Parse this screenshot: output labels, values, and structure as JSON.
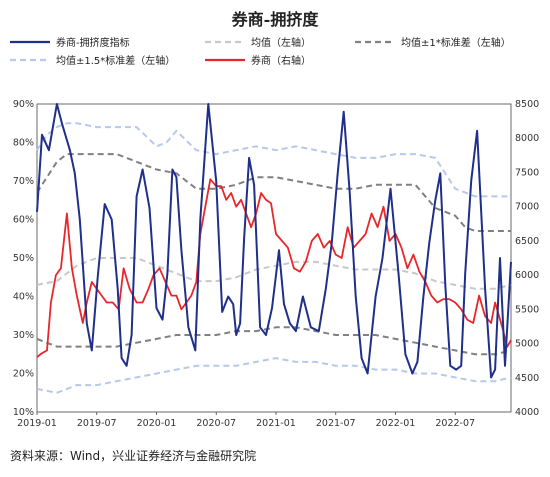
{
  "title": "券商-拥挤度",
  "source": "资料来源：Wind，兴业证券经济与金融研究院",
  "chart_data": {
    "type": "line",
    "x_ticks": [
      "2019-01",
      "2019-07",
      "2020-01",
      "2020-07",
      "2021-01",
      "2021-07",
      "2022-01",
      "2022-07"
    ],
    "x_range": [
      "2019-01",
      "2022-12"
    ],
    "y_left": {
      "ticks": [
        "10%",
        "20%",
        "30%",
        "40%",
        "50%",
        "60%",
        "70%",
        "80%",
        "90%"
      ],
      "min": 10,
      "max": 90
    },
    "y_right": {
      "ticks": [
        "4000",
        "4500",
        "5000",
        "5500",
        "6000",
        "6500",
        "7000",
        "7500",
        "8000",
        "8500"
      ],
      "min": 4000,
      "max": 8500
    },
    "legend": [
      "券商-拥挤度指标",
      "均值（左轴）",
      "均值±1*标准差（左轴）",
      "均值±1.5*标准差（左轴）",
      "券商（右轴）"
    ],
    "colors": {
      "crowding": "#1f2f8a",
      "mean": "#c8c8c8",
      "band1": "#808080",
      "band15": "#b7c8ea",
      "broker": "#e8262b"
    },
    "series": [
      {
        "name": "券商-拥挤度指标",
        "axis": "left",
        "t": [
          0,
          0.5,
          1.2,
          2,
          2.5,
          3.3,
          3.8,
          4.3,
          5,
          5.5,
          6.1,
          6.8,
          7.5,
          8.1,
          8.5,
          9,
          9.5,
          10,
          10.6,
          11.3,
          12,
          12.6,
          13.1,
          13.6,
          14,
          14.5,
          15.2,
          15.9,
          16.4,
          17.2,
          18,
          18.6,
          19.2,
          19.7,
          20,
          20.4,
          20.8,
          21.3,
          21.8,
          22.4,
          23,
          23.6,
          24.3,
          24.8,
          25.4,
          26,
          26.7,
          27.5,
          28.3,
          29,
          29.6,
          30.2,
          30.8,
          31.4,
          32,
          32.6,
          33.2,
          34,
          34.7,
          35.5,
          36.3,
          37,
          37.7,
          38.2,
          38.8,
          39.4,
          40,
          40.5,
          41,
          41.5,
          42.1,
          42.6,
          43,
          43.6,
          44.2,
          45,
          45.6,
          46,
          46.5,
          47,
          47.6
        ],
        "v": [
          62,
          82,
          78,
          90,
          85,
          78,
          72,
          60,
          33,
          26,
          45,
          64,
          60,
          42,
          24,
          22,
          30,
          66,
          73,
          63,
          37,
          34,
          46,
          73,
          71,
          52,
          32,
          26,
          60,
          90,
          70,
          36,
          40,
          38,
          30,
          33,
          55,
          76,
          69,
          32,
          30,
          37,
          52,
          38,
          33,
          31,
          40,
          32,
          31,
          42,
          54,
          72,
          88,
          67,
          40,
          24,
          20,
          40,
          50,
          68,
          46,
          25,
          20,
          23,
          40,
          54,
          65,
          72,
          43,
          22,
          21,
          22,
          46,
          70,
          83,
          42,
          19,
          21,
          50,
          22,
          49
        ]
      },
      {
        "name": "券商（右轴）",
        "axis": "right",
        "t": [
          0,
          0.4,
          1,
          1.4,
          1.9,
          2.4,
          3,
          3.5,
          4,
          4.6,
          5,
          5.5,
          6,
          6.5,
          7,
          7.6,
          8.2,
          8.7,
          9.3,
          10,
          10.6,
          11.2,
          11.7,
          12.3,
          12.9,
          13.5,
          14,
          14.5,
          15,
          15.5,
          16,
          16.4,
          16.9,
          17.4,
          18,
          18.5,
          19,
          19.5,
          20,
          20.5,
          21,
          21.5,
          22,
          22.5,
          23,
          23.5,
          24,
          24.6,
          25.2,
          25.8,
          26.4,
          27,
          27.6,
          28.2,
          28.8,
          29.4,
          30,
          30.6,
          31.2,
          31.8,
          32.4,
          33,
          33.6,
          34.2,
          34.8,
          35.4,
          36,
          36.6,
          37.2,
          37.8,
          38.4,
          39,
          39.6,
          40.2,
          40.8,
          41.4,
          42,
          42.6,
          43.2,
          43.8,
          44.4,
          45,
          45.6,
          46,
          46.4,
          46.8,
          47.2,
          47.6
        ],
        "v": [
          4800,
          4850,
          4900,
          5600,
          6000,
          6100,
          6900,
          6100,
          5700,
          5300,
          5600,
          5900,
          5800,
          5700,
          5600,
          5600,
          5500,
          6100,
          5800,
          5600,
          5600,
          5800,
          6000,
          6100,
          5900,
          5700,
          5700,
          5500,
          5600,
          5700,
          5900,
          6600,
          7000,
          7400,
          7300,
          7300,
          7100,
          7200,
          7000,
          7100,
          6900,
          6700,
          6900,
          7200,
          7100,
          7050,
          6600,
          6500,
          6400,
          6100,
          6050,
          6200,
          6500,
          6600,
          6400,
          6500,
          6300,
          6250,
          6700,
          6400,
          6500,
          6600,
          6900,
          6700,
          7000,
          6500,
          6600,
          6400,
          6100,
          6300,
          6050,
          5900,
          5700,
          5600,
          5650,
          5650,
          5600,
          5500,
          5350,
          5300,
          5700,
          5400,
          5300,
          5600,
          5400,
          5200,
          4950,
          5050
        ]
      },
      {
        "name": "均值（左轴）",
        "axis": "left",
        "t": [
          0,
          2,
          4,
          6,
          8,
          10,
          12,
          14,
          16,
          18,
          20,
          22,
          24,
          26,
          28,
          30,
          32,
          34,
          36,
          38,
          40,
          42,
          44,
          46,
          47.6
        ],
        "v": [
          43,
          44,
          48,
          50,
          50,
          50,
          48,
          46,
          44,
          44,
          45,
          47,
          48,
          49,
          49,
          48,
          47,
          47,
          47,
          46,
          44,
          43,
          42,
          42,
          43
        ]
      },
      {
        "name": "均值+1*标准差（左轴）",
        "axis": "left",
        "t": [
          0,
          1,
          2,
          3,
          4,
          6,
          8,
          10,
          12,
          14,
          16,
          18,
          20,
          22,
          24,
          26,
          28,
          30,
          32,
          34,
          36,
          38,
          40,
          42,
          43,
          44,
          46,
          47.6
        ],
        "v": [
          67,
          71,
          75,
          77,
          77,
          77,
          77,
          75,
          73,
          72,
          68,
          68,
          69,
          71,
          71,
          70,
          69,
          68,
          68,
          69,
          69,
          69,
          63,
          61,
          58,
          57,
          57,
          57
        ]
      },
      {
        "name": "均值-1*标准差（左轴）",
        "axis": "left",
        "t": [
          0,
          2,
          4,
          6,
          8,
          10,
          12,
          14,
          16,
          18,
          20,
          22,
          24,
          26,
          28,
          30,
          32,
          34,
          36,
          38,
          40,
          42,
          44,
          46,
          47.6
        ],
        "v": [
          29,
          27,
          27,
          27,
          27,
          28,
          29,
          30,
          30,
          30,
          31,
          31,
          32,
          32,
          31,
          30,
          30,
          30,
          29,
          28,
          27,
          26,
          25,
          25,
          26
        ]
      },
      {
        "name": "均值+1.5*标准差（左轴）",
        "axis": "left",
        "t": [
          0,
          1,
          2,
          3,
          4,
          6,
          8,
          10,
          12,
          13,
          14,
          16,
          18,
          20,
          22,
          24,
          26,
          28,
          30,
          32,
          34,
          36,
          38,
          40,
          41,
          42,
          44,
          46,
          47.6
        ],
        "v": [
          78,
          82,
          84,
          85,
          85,
          84,
          84,
          84,
          79,
          80,
          83,
          78,
          77,
          78,
          79,
          78,
          79,
          78,
          77,
          76,
          76,
          77,
          77,
          76,
          72,
          68,
          66,
          66,
          66
        ]
      },
      {
        "name": "均值-1.5*标准差（左轴）",
        "axis": "left",
        "t": [
          0,
          2,
          4,
          6,
          8,
          10,
          12,
          14,
          16,
          18,
          20,
          22,
          24,
          26,
          28,
          30,
          32,
          34,
          36,
          38,
          40,
          42,
          44,
          46,
          47.6
        ],
        "v": [
          16,
          15,
          17,
          17,
          18,
          19,
          20,
          21,
          22,
          22,
          22,
          23,
          24,
          23,
          23,
          22,
          22,
          21,
          21,
          20,
          20,
          19,
          18,
          18,
          19
        ]
      }
    ]
  }
}
